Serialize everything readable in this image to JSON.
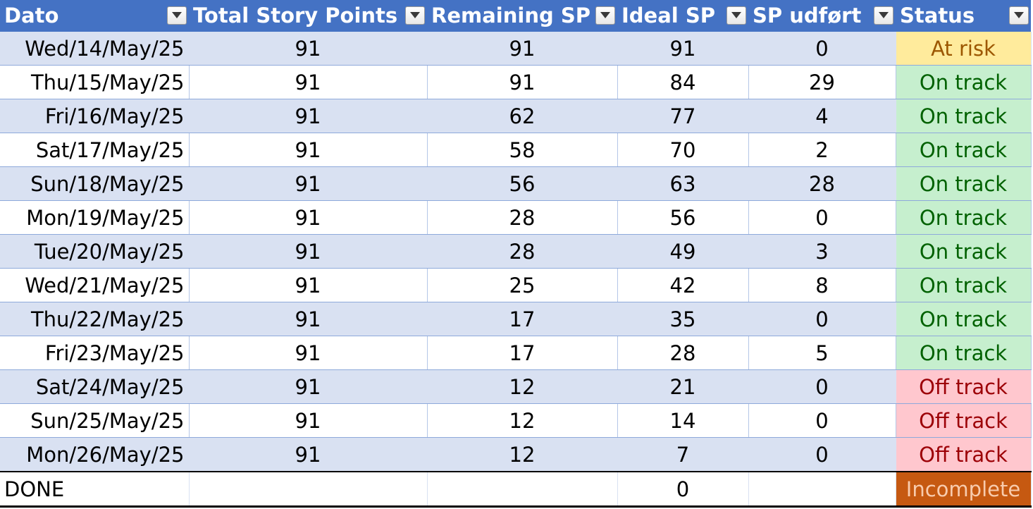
{
  "table": {
    "headers": [
      "Dato",
      "Total Story Points",
      "Remaining SP",
      "Ideal SP",
      "SP udført",
      "Status"
    ],
    "rows": [
      {
        "date": "Wed/14/May/25",
        "total": "91",
        "remaining": "91",
        "ideal": "91",
        "done": "0",
        "status": "At risk"
      },
      {
        "date": "Thu/15/May/25",
        "total": "91",
        "remaining": "91",
        "ideal": "84",
        "done": "29",
        "status": "On track"
      },
      {
        "date": "Fri/16/May/25",
        "total": "91",
        "remaining": "62",
        "ideal": "77",
        "done": "4",
        "status": "On track"
      },
      {
        "date": "Sat/17/May/25",
        "total": "91",
        "remaining": "58",
        "ideal": "70",
        "done": "2",
        "status": "On track"
      },
      {
        "date": "Sun/18/May/25",
        "total": "91",
        "remaining": "56",
        "ideal": "63",
        "done": "28",
        "status": "On track"
      },
      {
        "date": "Mon/19/May/25",
        "total": "91",
        "remaining": "28",
        "ideal": "56",
        "done": "0",
        "status": "On track"
      },
      {
        "date": "Tue/20/May/25",
        "total": "91",
        "remaining": "28",
        "ideal": "49",
        "done": "3",
        "status": "On track"
      },
      {
        "date": "Wed/21/May/25",
        "total": "91",
        "remaining": "25",
        "ideal": "42",
        "done": "8",
        "status": "On track"
      },
      {
        "date": "Thu/22/May/25",
        "total": "91",
        "remaining": "17",
        "ideal": "35",
        "done": "0",
        "status": "On track"
      },
      {
        "date": "Fri/23/May/25",
        "total": "91",
        "remaining": "17",
        "ideal": "28",
        "done": "5",
        "status": "On track"
      },
      {
        "date": "Sat/24/May/25",
        "total": "91",
        "remaining": "12",
        "ideal": "21",
        "done": "0",
        "status": "Off track"
      },
      {
        "date": "Sun/25/May/25",
        "total": "91",
        "remaining": "12",
        "ideal": "14",
        "done": "0",
        "status": "Off track"
      },
      {
        "date": "Mon/26/May/25",
        "total": "91",
        "remaining": "12",
        "ideal": "7",
        "done": "0",
        "status": "Off track"
      }
    ],
    "total_row": {
      "label": "DONE",
      "total": "",
      "remaining": "",
      "ideal": "0",
      "done": "",
      "status": "Incomplete"
    }
  },
  "colors": {
    "header_bg": "#4472c4",
    "band_bg": "#d9e1f2",
    "status_styles": {
      "At risk": {
        "bg": "#ffeb9c",
        "fg": "#9c5700"
      },
      "On track": {
        "bg": "#c6efce",
        "fg": "#006100"
      },
      "Off track": {
        "bg": "#ffc7ce",
        "fg": "#9c0006"
      },
      "Incomplete": {
        "bg": "#c65911",
        "fg": "#f8cbad"
      }
    }
  },
  "icons": {
    "filter": "filter-dropdown-icon"
  }
}
